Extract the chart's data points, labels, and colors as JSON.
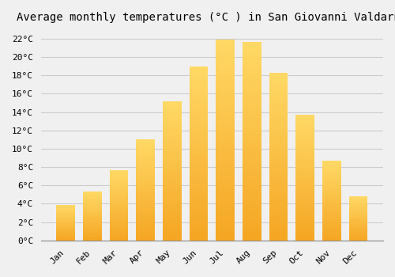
{
  "title": "Average monthly temperatures (°C ) in San Giovanni Valdarno",
  "months": [
    "Jan",
    "Feb",
    "Mar",
    "Apr",
    "May",
    "Jun",
    "Jul",
    "Aug",
    "Sep",
    "Oct",
    "Nov",
    "Dec"
  ],
  "temperatures": [
    3.9,
    5.3,
    7.7,
    11.0,
    15.2,
    19.0,
    21.9,
    21.6,
    18.3,
    13.7,
    8.7,
    4.8
  ],
  "bar_color_bottom": "#F5A623",
  "bar_color_top": "#FFD966",
  "ylim": [
    0,
    23
  ],
  "ytick_step": 2,
  "background_color": "#f0f0f0",
  "grid_color": "#cccccc",
  "title_fontsize": 10,
  "tick_fontsize": 8,
  "font_family": "monospace",
  "bar_width": 0.7
}
